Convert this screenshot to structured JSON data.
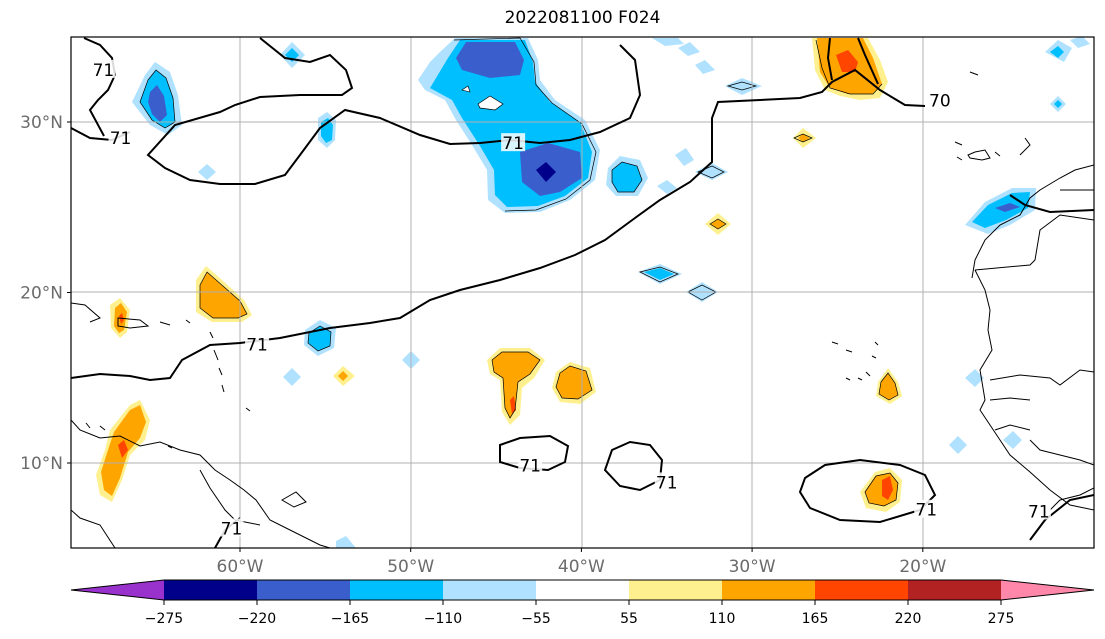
{
  "title": "2022081100 F024",
  "map": {
    "lon_ticks": [
      {
        "lon": -60,
        "label": "60°W"
      },
      {
        "lon": -50,
        "label": "50°W"
      },
      {
        "lon": -40,
        "label": "40°W"
      },
      {
        "lon": -30,
        "label": "30°W"
      },
      {
        "lon": -20,
        "label": "20°W"
      }
    ],
    "lat_ticks": [
      {
        "lat": 30,
        "label": "30°N"
      },
      {
        "lat": 20,
        "label": "20°N"
      },
      {
        "lat": 10,
        "label": "10°N"
      }
    ],
    "contour_labels": [
      {
        "text": "71",
        "lon": -68,
        "lat": 33
      },
      {
        "text": "71",
        "lon": -67,
        "lat": 29
      },
      {
        "text": "71",
        "lon": -44,
        "lat": 28.7
      },
      {
        "text": "70",
        "lon": -19,
        "lat": 31.2
      },
      {
        "text": "71",
        "lon": -59,
        "lat": 16.9
      },
      {
        "text": "71",
        "lon": -43,
        "lat": 9.8
      },
      {
        "text": "71",
        "lon": -35,
        "lat": 8.8
      },
      {
        "text": "71",
        "lon": -19.8,
        "lat": 7.2
      },
      {
        "text": "71",
        "lon": -60.5,
        "lat": 6.1
      },
      {
        "text": "71",
        "lon": -13.2,
        "lat": 7.1
      }
    ]
  },
  "colorbar": {
    "colors": [
      "#9932cc",
      "#00008b",
      "#3a5fcd",
      "#00bfff",
      "#b0e2ff",
      "#ffffff",
      "#fff08f",
      "#ffa500",
      "#ff4500",
      "#b22222",
      "#ff88aa"
    ],
    "tick_labels": [
      "−275",
      "−220",
      "−165",
      "−110",
      "−55",
      "55",
      "110",
      "165",
      "220",
      "275"
    ]
  }
}
